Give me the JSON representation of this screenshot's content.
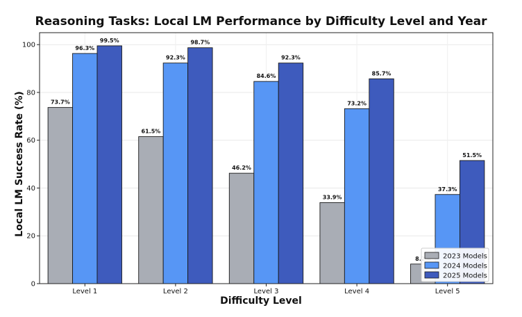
{
  "chart_data": {
    "type": "bar",
    "title": "Reasoning Tasks: Local LM Performance by Difficulty Level and Year",
    "xlabel": "Difficulty Level",
    "ylabel": "Local LM Success Rate (%)",
    "categories": [
      "Level 1",
      "Level 2",
      "Level 3",
      "Level 4",
      "Level 5"
    ],
    "ylim": [
      0,
      105
    ],
    "yticks": [
      0,
      20,
      40,
      60,
      80,
      100
    ],
    "grid": true,
    "legend_position": "bottom-right",
    "series": [
      {
        "name": "2023 Models",
        "color": "#a9adb5",
        "values": [
          73.7,
          61.5,
          46.2,
          33.9,
          8.2
        ],
        "labels": [
          "73.7%",
          "61.5%",
          "46.2%",
          "33.9%",
          "8.2%"
        ]
      },
      {
        "name": "2024 Models",
        "color": "#5796f5",
        "values": [
          96.3,
          92.3,
          84.6,
          73.2,
          37.3
        ],
        "labels": [
          "96.3%",
          "92.3%",
          "84.6%",
          "73.2%",
          "37.3%"
        ]
      },
      {
        "name": "2025 Models",
        "color": "#3e5bbd",
        "values": [
          99.5,
          98.7,
          92.3,
          85.7,
          51.5
        ],
        "labels": [
          "99.5%",
          "98.7%",
          "92.3%",
          "85.7%",
          "51.5%"
        ]
      }
    ]
  }
}
